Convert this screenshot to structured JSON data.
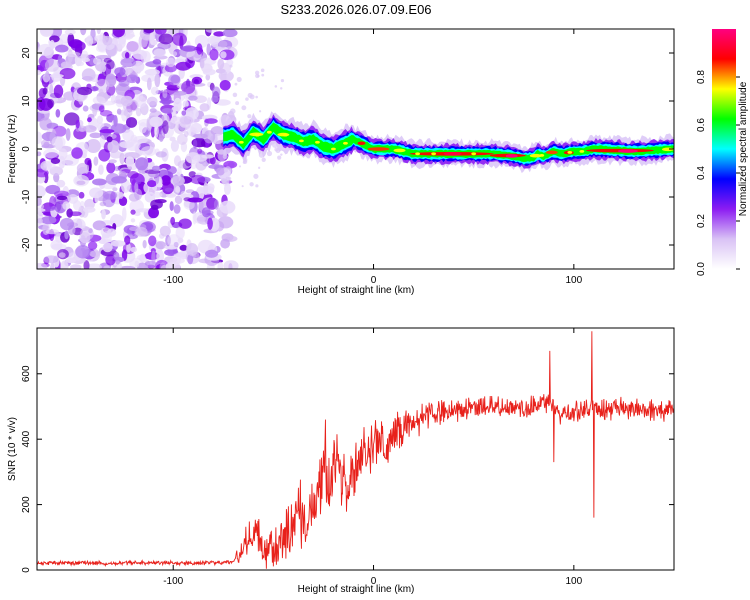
{
  "figure_title": "S233.2026.026.07.09.E06",
  "chart_data": [
    {
      "type": "heatmap",
      "title": "S233.2026.026.07.09.E06",
      "xlabel": "Height of straight line (km)",
      "ylabel": "Frequency (Hz)",
      "xlim": [
        -168,
        150
      ],
      "ylim": [
        -25,
        25
      ],
      "xticks": [
        -100,
        0,
        100
      ],
      "yticks": [
        -20,
        -10,
        0,
        10,
        20
      ],
      "xtick_labels": [
        "-100",
        "0",
        "100"
      ],
      "ytick_labels": [
        "-20",
        "-10",
        "0",
        "10",
        "20"
      ],
      "noise_region_km": [
        -168,
        -75
      ],
      "signal_start_km": -75,
      "ridge_frequency": {
        "x": [
          -75,
          -70,
          -65,
          -60,
          -55,
          -50,
          -45,
          -40,
          -35,
          -30,
          -25,
          -20,
          -15,
          -10,
          -5,
          0,
          10,
          20,
          40,
          60,
          70,
          75,
          80,
          82,
          85,
          90,
          95,
          100,
          105,
          110,
          130,
          150
        ],
        "y": [
          2.5,
          3,
          1,
          3.5,
          2,
          4.5,
          3,
          2.5,
          1.5,
          2,
          0.5,
          0,
          1,
          2,
          1,
          0,
          0,
          -1,
          -1,
          -1,
          -1.5,
          -2,
          -1.8,
          -1,
          -1.5,
          -0.5,
          -1,
          -0.5,
          -0.5,
          0,
          -0.5,
          0
        ]
      },
      "colorbar": {
        "label": "Normalized spectral amplitude",
        "range": [
          0,
          1
        ],
        "ticks": [
          0.0,
          0.2,
          0.4,
          0.6,
          0.8
        ],
        "tick_labels": [
          "0.0",
          "0.2",
          "0.4",
          "0.6",
          "0.8"
        ],
        "colormap": [
          "#ffffff",
          "#d9c2f5",
          "#8c1cf2",
          "#0000ff",
          "#00ffff",
          "#00ff00",
          "#ffff00",
          "#ff0000",
          "#ff0080"
        ]
      }
    },
    {
      "type": "line",
      "xlabel": "Height of straight line (km)",
      "ylabel": "SNR (10 * v/v)",
      "xlim": [
        -168,
        150
      ],
      "ylim": [
        0,
        740
      ],
      "xticks": [
        -100,
        0,
        100
      ],
      "yticks": [
        0,
        200,
        400,
        600
      ],
      "xtick_labels": [
        "-100",
        "0",
        "100"
      ],
      "ytick_labels": [
        "0",
        "200",
        "400",
        "600"
      ],
      "line_color": "#e8211b",
      "series": [
        {
          "name": "SNR",
          "x": [
            -168,
            -150,
            -130,
            -110,
            -90,
            -70,
            -66,
            -62,
            -58,
            -54,
            -50,
            -46,
            -42,
            -38,
            -34,
            -30,
            -26,
            -22,
            -18,
            -14,
            -10,
            -6,
            -2,
            2,
            6,
            10,
            14,
            18,
            22,
            26,
            30,
            40,
            50,
            60,
            70,
            80,
            88,
            90,
            92,
            100,
            108,
            110,
            112,
            120,
            130,
            140,
            150
          ],
          "y": [
            20,
            22,
            20,
            22,
            21,
            25,
            50,
            120,
            110,
            60,
            50,
            80,
            120,
            180,
            150,
            220,
            300,
            260,
            330,
            240,
            300,
            350,
            360,
            400,
            380,
            420,
            430,
            440,
            460,
            470,
            480,
            490,
            495,
            500,
            490,
            495,
            520,
            500,
            480,
            485,
            490,
            500,
            480,
            495,
            490,
            488,
            490
          ]
        }
      ],
      "spikes": [
        {
          "x": -24,
          "y": 460
        },
        {
          "x": 88,
          "y": 670
        },
        {
          "x": 90,
          "y": 330
        },
        {
          "x": 109,
          "y": 730
        },
        {
          "x": 110,
          "y": 160
        }
      ],
      "noise_amplitude": {
        "x": [
          -168,
          -70,
          -65,
          -50,
          -40,
          -25,
          -10,
          0,
          20,
          30,
          60,
          90,
          150
        ],
        "y": [
          8,
          8,
          60,
          80,
          120,
          140,
          110,
          90,
          60,
          45,
          40,
          40,
          40
        ]
      }
    }
  ]
}
